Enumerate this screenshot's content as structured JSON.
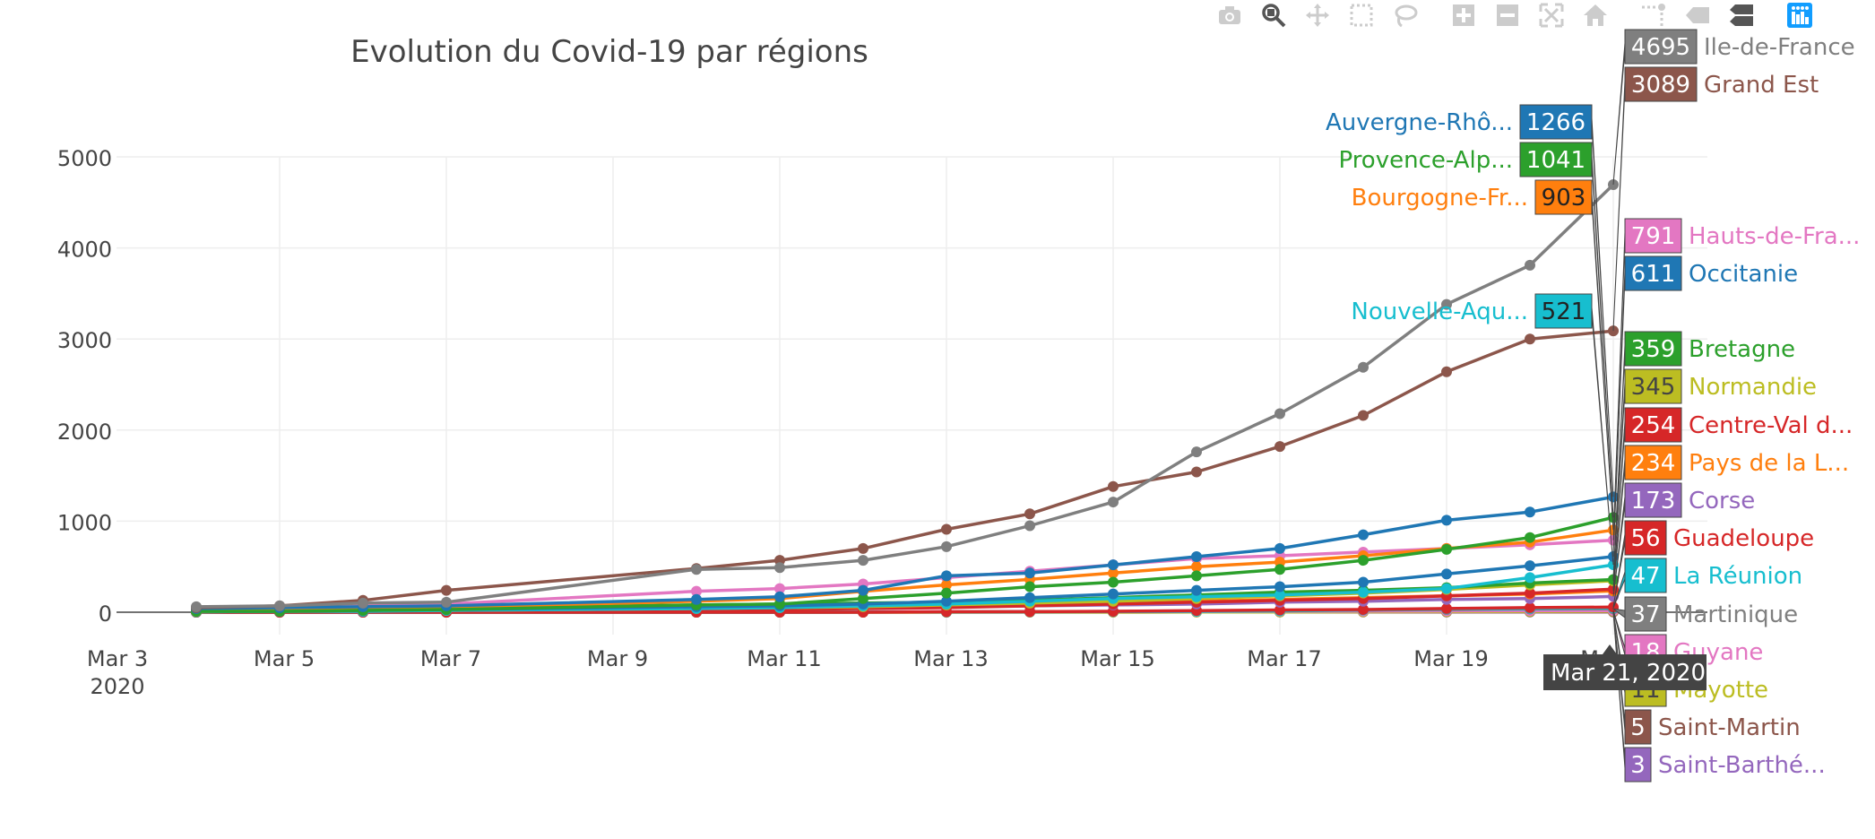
{
  "modebar": {
    "buttons": [
      {
        "name": "download-plot-icon"
      },
      {
        "name": "zoom-icon"
      },
      {
        "name": "pan-icon"
      },
      {
        "name": "box-select-icon"
      },
      {
        "name": "lasso-select-icon"
      },
      {
        "name": "zoom-in-icon"
      },
      {
        "name": "zoom-out-icon"
      },
      {
        "name": "autoscale-icon"
      },
      {
        "name": "reset-axes-icon"
      },
      {
        "name": "toggle-spike-lines-icon"
      },
      {
        "name": "show-closest-hover-icon"
      },
      {
        "name": "compare-hover-icon"
      },
      {
        "name": "plotly-logo-icon"
      }
    ]
  },
  "chart_data": {
    "type": "line",
    "title": "Evolution du Covid-19 par régions",
    "xlabel": "",
    "ylabel": "",
    "ylim": [
      -500,
      5000
    ],
    "grid": true,
    "x_ticks": [
      "Mar 3",
      "Mar 5",
      "Mar 7",
      "Mar 9",
      "Mar 11",
      "Mar 13",
      "Mar 15",
      "Mar 17",
      "Mar 19",
      "Mar 21"
    ],
    "x_tick_year": "2020",
    "y_ticks": [
      "0",
      "1000",
      "2000",
      "3000",
      "4000",
      "5000"
    ],
    "hover_x_label": "Mar 21, 2020",
    "x": [
      "2020-03-04",
      "2020-03-05",
      "2020-03-06",
      "2020-03-07",
      "2020-03-10",
      "2020-03-11",
      "2020-03-12",
      "2020-03-13",
      "2020-03-14",
      "2020-03-15",
      "2020-03-16",
      "2020-03-17",
      "2020-03-18",
      "2020-03-19",
      "2020-03-20",
      "2020-03-21"
    ],
    "series": [
      {
        "name": "Ile-de-France",
        "label": "Ile-de-France",
        "color": "#7f7f7f",
        "hover": "4695",
        "values": [
          60,
          70,
          100,
          110,
          470,
          490,
          570,
          720,
          950,
          1210,
          1760,
          2180,
          2690,
          3380,
          3810,
          4695
        ]
      },
      {
        "name": "Grand Est",
        "label": "Grand Est",
        "color": "#8c564b",
        "hover": "3089",
        "values": [
          50,
          70,
          130,
          240,
          480,
          570,
          700,
          910,
          1080,
          1380,
          1540,
          1820,
          2160,
          2640,
          3000,
          3089
        ]
      },
      {
        "name": "Auvergne-Rhône-Alpes",
        "label": "Auvergne-Rhô...",
        "color": "#1f77b4",
        "hover": "1266",
        "values": [
          40,
          50,
          60,
          70,
          140,
          170,
          240,
          400,
          430,
          520,
          610,
          700,
          850,
          1010,
          1100,
          1266
        ]
      },
      {
        "name": "Provence-Alpes-Côte d'Azur",
        "label": "Provence-Alp...",
        "color": "#2ca02c",
        "hover": "1041",
        "values": [
          10,
          10,
          20,
          30,
          80,
          90,
          150,
          210,
          280,
          330,
          400,
          470,
          570,
          690,
          820,
          1041
        ]
      },
      {
        "name": "Bourgogne-Franche-Comté",
        "label": "Bourgogne-Fr...",
        "color": "#ff7f0e",
        "hover": "903",
        "values": [
          10,
          20,
          30,
          50,
          120,
          150,
          230,
          300,
          360,
          430,
          500,
          550,
          620,
          700,
          770,
          903
        ]
      },
      {
        "name": "Hauts-de-France",
        "label": "Hauts-de-Fra...",
        "color": "#e377c2",
        "hover": "791",
        "values": [
          40,
          50,
          70,
          90,
          230,
          260,
          310,
          380,
          450,
          520,
          590,
          620,
          660,
          700,
          740,
          791
        ]
      },
      {
        "name": "Occitanie",
        "label": "Occitanie",
        "color": "#1f77b4",
        "hover": "611",
        "values": [
          10,
          10,
          20,
          30,
          60,
          70,
          90,
          120,
          160,
          200,
          240,
          280,
          330,
          420,
          510,
          611
        ]
      },
      {
        "name": "Nouvelle-Aquitaine",
        "label": "Nouvelle-Aqu...",
        "color": "#17becf",
        "hover": "521",
        "values": [
          5,
          10,
          10,
          20,
          40,
          50,
          70,
          90,
          120,
          150,
          170,
          190,
          220,
          260,
          380,
          521
        ]
      },
      {
        "name": "Bretagne",
        "label": "Bretagne",
        "color": "#2ca02c",
        "hover": "359",
        "values": [
          20,
          30,
          40,
          50,
          80,
          90,
          100,
          110,
          130,
          160,
          190,
          220,
          240,
          270,
          320,
          359
        ]
      },
      {
        "name": "Normandie",
        "label": "Normandie",
        "color": "#bcbd22",
        "hover": "345",
        "values": [
          5,
          10,
          20,
          20,
          40,
          50,
          60,
          80,
          100,
          120,
          150,
          180,
          210,
          250,
          300,
          345
        ]
      },
      {
        "name": "Centre-Val de Loire",
        "label": "Centre-Val d...",
        "color": "#d62728",
        "hover": "254",
        "values": [
          5,
          5,
          10,
          10,
          20,
          30,
          40,
          50,
          70,
          90,
          110,
          130,
          150,
          180,
          210,
          254
        ]
      },
      {
        "name": "Pays de la Loire",
        "label": "Pays de la L...",
        "color": "#ff7f0e",
        "hover": "234",
        "values": [
          10,
          10,
          20,
          20,
          30,
          40,
          50,
          60,
          80,
          100,
          120,
          140,
          160,
          180,
          200,
          234
        ]
      },
      {
        "name": "Corse",
        "label": "Corse",
        "color": "#9467bd",
        "hover": "173",
        "values": [
          5,
          10,
          10,
          20,
          30,
          40,
          50,
          60,
          70,
          80,
          90,
          110,
          120,
          140,
          150,
          173
        ]
      },
      {
        "name": "Guadeloupe",
        "label": "Guadeloupe",
        "color": "#d62728",
        "hover": "56",
        "values": [
          0,
          0,
          0,
          0,
          0,
          0,
          0,
          5,
          6,
          10,
          18,
          25,
          30,
          40,
          50,
          56
        ]
      },
      {
        "name": "La Réunion",
        "label": "La Réunion",
        "color": "#17becf",
        "hover": "47",
        "values": [
          0,
          0,
          0,
          0,
          0,
          0,
          1,
          3,
          5,
          7,
          10,
          15,
          25,
          35,
          40,
          47
        ]
      },
      {
        "name": "Martinique",
        "label": "Martinique",
        "color": "#7f7f7f",
        "hover": "37",
        "values": [
          0,
          0,
          0,
          0,
          0,
          0,
          2,
          3,
          5,
          9,
          15,
          19,
          25,
          30,
          35,
          37
        ]
      },
      {
        "name": "Guyane",
        "label": "Guyane",
        "color": "#e377c2",
        "hover": "18",
        "values": [
          0,
          0,
          0,
          0,
          5,
          5,
          5,
          6,
          7,
          7,
          9,
          11,
          13,
          15,
          17,
          18
        ]
      },
      {
        "name": "Mayotte",
        "label": "Mayotte",
        "color": "#bcbd22",
        "hover": "11",
        "values": [
          0,
          0,
          0,
          0,
          0,
          0,
          0,
          0,
          1,
          1,
          2,
          3,
          5,
          7,
          9,
          11
        ]
      },
      {
        "name": "Saint-Martin",
        "label": "Saint-Martin",
        "color": "#8c564b",
        "hover": "5",
        "values": [
          0,
          0,
          0,
          1,
          2,
          2,
          2,
          2,
          2,
          3,
          3,
          4,
          4,
          4,
          5,
          5
        ]
      },
      {
        "name": "Saint-Barthélemy",
        "label": "Saint-Barthé...",
        "color": "#9467bd",
        "hover": "3",
        "values": [
          0,
          0,
          1,
          1,
          1,
          1,
          1,
          1,
          1,
          1,
          2,
          2,
          3,
          3,
          3,
          3
        ]
      }
    ]
  }
}
